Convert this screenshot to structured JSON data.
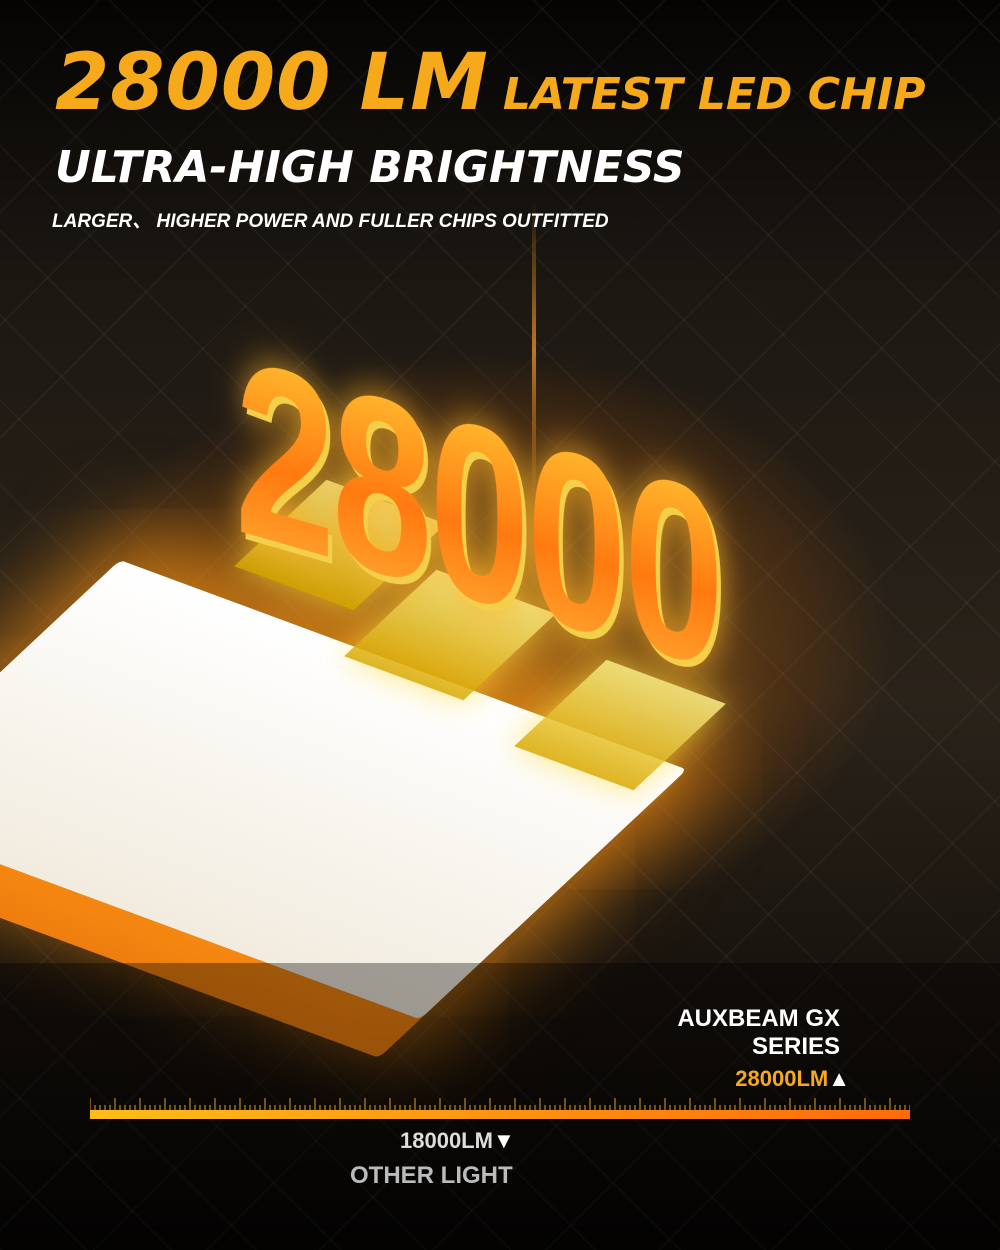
{
  "headline": {
    "lumens": "28000 LM",
    "tagline": "LATEST LED CHIP",
    "subtitle": "ULTRA-HIGH BRIGHTNESS",
    "description": "LARGER、 HIGHER POWER AND FULLER CHIPS OUTFITTED"
  },
  "graphic": {
    "number": "28000"
  },
  "comparison": {
    "product_line1": "AUXBEAM GX",
    "product_line2": "SERIES",
    "product_value": "28000LM",
    "product_marker": "▲",
    "other_value": "18000LM",
    "other_marker": "▼",
    "other_label": "OTHER LIGHT"
  },
  "colors": {
    "accent": "#f7a91c",
    "bar_start": "#ffbd1a",
    "bar_end": "#ff6a0a"
  }
}
